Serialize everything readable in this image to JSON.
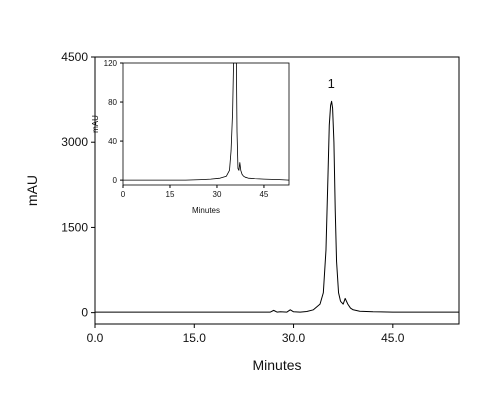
{
  "chart_data": [
    {
      "id": "main",
      "type": "line",
      "xlabel": "Minutes",
      "ylabel": "mAU",
      "xlim": [
        0,
        55
      ],
      "ylim": [
        -200,
        4500
      ],
      "xticks": [
        0,
        15,
        30,
        45
      ],
      "xtick_labels": [
        "0.0",
        "15.0",
        "30.0",
        "45.0"
      ],
      "yticks": [
        0,
        1500,
        3000,
        4500
      ],
      "ytick_labels": [
        "0",
        "1500",
        "3000",
        "4500"
      ],
      "grid": false,
      "annotations": [
        {
          "text": "1",
          "x": 35.7,
          "y": 3950
        }
      ],
      "series": [
        {
          "x": [
            0,
            10,
            20,
            26.5,
            27,
            27.5,
            28,
            29,
            29.5,
            30,
            31,
            32,
            33,
            34,
            34.5,
            34.9,
            35.2,
            35.4,
            35.6,
            35.75,
            35.9,
            36.1,
            36.3,
            36.5,
            36.8,
            37.1,
            37.5,
            37.8,
            38.2,
            38.6,
            39,
            40,
            42,
            45,
            48,
            50,
            52,
            55
          ],
          "y": [
            10,
            10,
            10,
            10,
            40,
            10,
            15,
            10,
            50,
            15,
            10,
            20,
            50,
            150,
            350,
            1100,
            2400,
            3300,
            3650,
            3720,
            3600,
            3000,
            1800,
            900,
            350,
            200,
            150,
            250,
            150,
            80,
            50,
            25,
            15,
            10,
            10,
            10,
            10,
            10
          ]
        }
      ]
    },
    {
      "id": "inset",
      "type": "line",
      "xlabel": "Minutes",
      "ylabel": "mAU",
      "xlim": [
        0,
        53
      ],
      "ylim": [
        -5,
        120
      ],
      "xticks": [
        0,
        15,
        30,
        45
      ],
      "xtick_labels": [
        "0",
        "15",
        "30",
        "45"
      ],
      "yticks": [
        0,
        40,
        80,
        120
      ],
      "ytick_labels": [
        "0",
        "40",
        "80",
        "120"
      ],
      "grid": false,
      "series": [
        {
          "x": [
            0,
            10,
            20,
            25,
            28,
            31,
            33,
            34,
            34.5,
            35.0,
            35.3,
            35.5,
            35.8,
            36.0,
            36.2,
            36.4,
            36.7,
            37.0,
            37.3,
            37.6,
            38.0,
            38.5,
            39,
            40,
            42,
            45,
            50,
            53
          ],
          "y": [
            0,
            0,
            0,
            0.5,
            1,
            2,
            4,
            10,
            30,
            70,
            120,
            120,
            120,
            120,
            120,
            50,
            12,
            10,
            18,
            10,
            6,
            4,
            3,
            2,
            1.5,
            1,
            0.5,
            0
          ]
        }
      ]
    }
  ]
}
